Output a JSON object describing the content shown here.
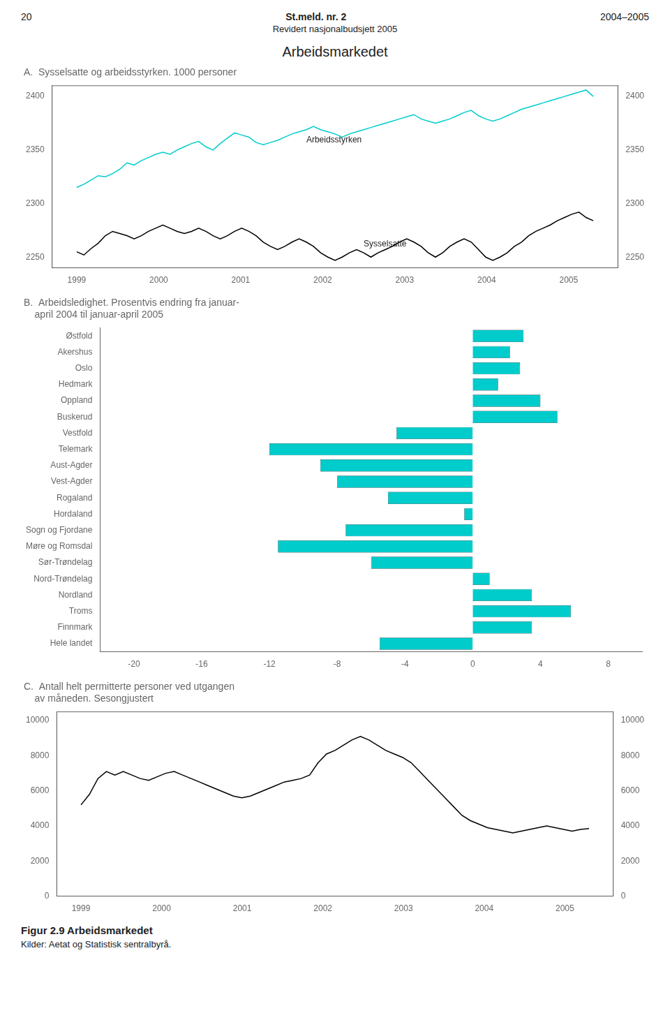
{
  "title": "Arbeidsmarkedet",
  "annotations": [
    "20",
    "St.meld. nr. 2",
    "2004–2005",
    "Revidert nasjonalbudsjett 2005",
    "Figur 2.9  Arbeidsmarkedet",
    "Kilder: Aetat og Statistisk sentralbyrå."
  ],
  "chart_data": [
    {
      "type": "line",
      "title": "A.  Sysselsatte og arbeidsstyrken. 1000 personer",
      "x": [
        1999,
        1999.0875,
        1999.175,
        1999.2625,
        1999.35,
        1999.4375,
        1999.525,
        1999.6125,
        1999.7,
        1999.7875,
        1999.875,
        1999.9625,
        2000.05,
        2000.1375,
        2000.225,
        2000.3125,
        2000.4,
        2000.4875,
        2000.575,
        2000.6625,
        2000.75,
        2000.8375,
        2000.925,
        2001.0125,
        2001.1,
        2001.1875,
        2001.275,
        2001.3625,
        2001.45,
        2001.5375,
        2001.625,
        2001.7125,
        2001.8,
        2001.8875,
        2001.975,
        2002.0625,
        2002.15,
        2002.2375,
        2002.325,
        2002.4125,
        2002.5,
        2002.5875,
        2002.675,
        2002.7625,
        2002.85,
        2002.9375,
        2003.025,
        2003.1125,
        2003.2,
        2003.2875,
        2003.375,
        2003.4625,
        2003.55,
        2003.6375,
        2003.725,
        2003.8125,
        2003.9,
        2003.9875,
        2004.075,
        2004.1625,
        2004.25,
        2004.3375,
        2004.425,
        2004.5125,
        2004.6,
        2004.6875,
        2004.775,
        2004.8625,
        2004.95,
        2005.0375,
        2005.125,
        2005.2125,
        2005.3
      ],
      "series": [
        {
          "color": "#00CCCC",
          "values": [
            2315,
            2318,
            2322,
            2326,
            2325,
            2328,
            2332,
            2338,
            2336,
            2340,
            2343,
            2346,
            2348,
            2346,
            2350,
            2353,
            2356,
            2358,
            2353,
            2350,
            2356,
            2361,
            2366,
            2364,
            2362,
            2357,
            2355,
            2357,
            2359,
            2362,
            2365,
            2367,
            2369,
            2372,
            2369,
            2367,
            2365,
            2362,
            2365,
            2367,
            2369,
            2371,
            2373,
            2375,
            2377,
            2379,
            2381,
            2383,
            2379,
            2377,
            2375,
            2377,
            2379,
            2382,
            2385,
            2387,
            2382,
            2379,
            2377,
            2379,
            2382,
            2385,
            2388,
            2390,
            2392,
            2394,
            2396,
            2398,
            2400,
            2402,
            2404,
            2406,
            2400
          ]
        },
        {
          "color": "#000000",
          "values": [
            2255,
            2252,
            2258,
            2263,
            2270,
            2274,
            2272,
            2270,
            2267,
            2270,
            2274,
            2277,
            2280,
            2277,
            2274,
            2272,
            2274,
            2277,
            2274,
            2270,
            2267,
            2270,
            2274,
            2277,
            2274,
            2270,
            2264,
            2260,
            2257,
            2260,
            2264,
            2267,
            2264,
            2260,
            2254,
            2250,
            2247,
            2250,
            2254,
            2257,
            2254,
            2250,
            2254,
            2257,
            2260,
            2264,
            2267,
            2264,
            2260,
            2254,
            2250,
            2254,
            2260,
            2264,
            2267,
            2264,
            2257,
            2250,
            2247,
            2250,
            2254,
            2260,
            2264,
            2270,
            2274,
            2277,
            2280,
            2284,
            2287,
            2290,
            2292,
            2287,
            2284
          ]
        }
      ],
      "xlim": [
        1998.7,
        2005.6
      ],
      "xticks": [
        1999,
        2000,
        2001,
        2002,
        2003,
        2004,
        2005
      ],
      "ylim": [
        2240,
        2410
      ],
      "yticks": [
        2250,
        2300,
        2350,
        2400
      ],
      "y2lim": [
        2240,
        2410
      ],
      "y2ticks": [
        2250,
        2300,
        2350,
        2400
      ],
      "grid": false,
      "annotations": [
        {
          "text": "Arbeidsstyrken",
          "x": 2001.8,
          "y": 2355
        },
        {
          "text": "Sysselsatte",
          "x": 2002.5,
          "y": 2258
        }
      ]
    },
    {
      "type": "bar",
      "orientation": "horizontal",
      "title": "B.  Arbeidsledighet. Prosentvis endring fra januar-\n    april 2004 til januar-april 2005",
      "categories": [
        "Østfold",
        "Akershus",
        "Oslo",
        "Hedmark",
        "Oppland",
        "Buskerud",
        "Vestfold",
        "Telemark",
        "Aust-Agder",
        "Vest-Agder",
        "Rogaland",
        "Hordaland",
        "Sogn og Fjordane",
        "Møre og Romsdal",
        "Sør-Trøndelag",
        "Nord-Trøndelag",
        "Nordland",
        "Troms",
        "Finnmark",
        "Hele landet"
      ],
      "values": [
        3.0,
        2.2,
        2.8,
        1.5,
        4.0,
        5.0,
        -4.5,
        -12.0,
        -9.0,
        -8.0,
        -5.0,
        -0.5,
        -7.5,
        -11.5,
        -6.0,
        1.0,
        3.5,
        5.8,
        3.5,
        -5.5
      ],
      "color": "#00CCCC",
      "xlim": [
        -22,
        10
      ],
      "xticks": [
        -20,
        -16,
        -12,
        -8,
        -4,
        0,
        4,
        8
      ],
      "grid": false
    },
    {
      "type": "line",
      "title": "C.  Antall helt permitterte personer ved utgangen\n    av måneden. Sesongjustert",
      "x": [
        1999,
        1999.105,
        1999.21,
        1999.315,
        1999.42,
        1999.525,
        1999.63,
        1999.735,
        1999.84,
        1999.945,
        2000.05,
        2000.155,
        2000.26,
        2000.365,
        2000.47,
        2000.575,
        2000.68,
        2000.785,
        2000.89,
        2000.995,
        2001.1,
        2001.205,
        2001.31,
        2001.415,
        2001.52,
        2001.625,
        2001.73,
        2001.835,
        2001.94,
        2002.045,
        2002.15,
        2002.255,
        2002.36,
        2002.465,
        2002.57,
        2002.675,
        2002.78,
        2002.885,
        2002.99,
        2003.095,
        2003.2,
        2003.305,
        2003.41,
        2003.515,
        2003.62,
        2003.725,
        2003.83,
        2003.935,
        2004.04,
        2004.145,
        2004.25,
        2004.355,
        2004.46,
        2004.565,
        2004.67,
        2004.775,
        2004.88,
        2004.985,
        2005.09,
        2005.195,
        2005.3
      ],
      "values": [
        5200,
        5800,
        6700,
        7100,
        6900,
        7100,
        6900,
        6700,
        6600,
        6800,
        7000,
        7100,
        6900,
        6700,
        6500,
        6300,
        6100,
        5900,
        5700,
        5600,
        5700,
        5900,
        6100,
        6300,
        6500,
        6600,
        6700,
        6900,
        7600,
        8100,
        8300,
        8600,
        8900,
        9100,
        8900,
        8600,
        8300,
        8100,
        7900,
        7600,
        7100,
        6600,
        6100,
        5600,
        5100,
        4600,
        4300,
        4100,
        3900,
        3800,
        3700,
        3600,
        3700,
        3800,
        3900,
        4000,
        3900,
        3800,
        3700,
        3800,
        3850
      ],
      "color": "#000000",
      "xlim": [
        1998.7,
        2005.6
      ],
      "xticks": [
        1999,
        2000,
        2001,
        2002,
        2003,
        2004,
        2005
      ],
      "ylim": [
        0,
        10500
      ],
      "yticks": [
        0,
        2000,
        4000,
        6000,
        8000,
        10000
      ],
      "y2lim": [
        0,
        10500
      ],
      "y2ticks": [
        0,
        2000,
        4000,
        6000,
        8000,
        10000
      ],
      "grid": false
    }
  ]
}
